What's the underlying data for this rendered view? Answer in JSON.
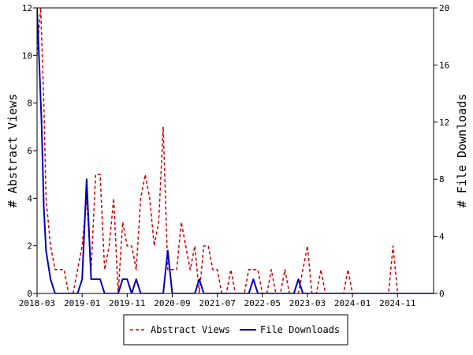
{
  "chart_data": {
    "type": "line",
    "xlabel": "",
    "x_tick_labels": [
      "2018-03",
      "2019-01",
      "2019-11",
      "2020-09",
      "2021-07",
      "2022-05",
      "2023-03",
      "2024-01",
      "2024-11"
    ],
    "x_tick_months": [
      0,
      10,
      20,
      30,
      40,
      50,
      60,
      70,
      80
    ],
    "x_range_months": [
      0,
      88
    ],
    "y_left": {
      "label": "# Abstract Views",
      "range": [
        0,
        12
      ],
      "ticks": [
        0,
        2,
        4,
        6,
        8,
        10,
        12
      ]
    },
    "y_right": {
      "label": "# File Downloads",
      "range": [
        0,
        20
      ],
      "ticks": [
        0,
        4,
        8,
        12,
        16,
        20
      ]
    },
    "grid": false,
    "legend_position": "bottom-center",
    "series": [
      {
        "name": "Abstract Views",
        "axis": "left",
        "color": "#cc0000",
        "style": "dashed",
        "x": [
          0,
          0.8,
          1.5,
          2,
          3,
          4,
          5,
          6,
          7,
          8,
          9,
          10,
          11,
          12,
          13,
          14,
          15,
          16,
          17,
          18,
          19,
          20,
          21,
          22,
          23,
          24,
          25,
          26,
          27,
          28,
          29,
          30,
          31,
          32,
          33,
          34,
          35,
          36,
          37,
          38,
          39,
          40,
          41,
          42,
          43,
          44,
          45,
          46,
          47,
          48,
          49,
          50,
          51,
          52,
          53,
          54,
          55,
          56,
          57,
          58,
          59,
          60,
          61,
          62,
          63,
          64,
          65,
          66,
          67,
          68,
          69,
          70,
          71,
          72,
          73,
          74,
          75,
          76,
          77,
          78,
          79,
          80,
          81,
          82,
          83,
          84,
          85,
          86,
          87,
          88
        ],
        "y": [
          10,
          12,
          8,
          4,
          2,
          1,
          1,
          1,
          0,
          0,
          1,
          2,
          4,
          1,
          5,
          5,
          1,
          2,
          4,
          0,
          3,
          2,
          2,
          1,
          4,
          5,
          4,
          2,
          3,
          7,
          1,
          1,
          1,
          3,
          2,
          1,
          2,
          0,
          2,
          2,
          1,
          1,
          0,
          0,
          1,
          0,
          0,
          0,
          1,
          1,
          1,
          0,
          0,
          1,
          0,
          0,
          1,
          0,
          0,
          0,
          1,
          2,
          0,
          0,
          1,
          0,
          0,
          0,
          0,
          0,
          1,
          0,
          0,
          0,
          0,
          0,
          0,
          0,
          0,
          0,
          2,
          0,
          0,
          0,
          0,
          0,
          0,
          0,
          0,
          0
        ]
      },
      {
        "name": "File Downloads",
        "axis": "right",
        "color": "#0000bb",
        "style": "solid",
        "x": [
          0,
          0.5,
          1,
          1.5,
          2,
          3,
          4,
          5,
          6,
          7,
          8,
          9,
          10,
          11,
          12,
          13,
          14,
          15,
          16,
          17,
          18,
          19,
          20,
          21,
          22,
          23,
          24,
          25,
          26,
          27,
          28,
          29,
          30,
          31,
          32,
          33,
          34,
          35,
          36,
          37,
          38,
          39,
          40,
          41,
          42,
          43,
          44,
          45,
          46,
          47,
          48,
          49,
          50,
          51,
          52,
          53,
          54,
          55,
          56,
          57,
          58,
          59,
          60,
          61,
          62,
          63,
          64,
          65,
          66,
          67,
          68,
          69,
          70,
          71,
          72,
          73,
          74,
          75,
          76,
          77,
          78,
          79,
          80,
          81,
          82,
          83,
          84,
          85,
          86,
          87,
          88
        ],
        "y": [
          20,
          16,
          12,
          6,
          3,
          1,
          0,
          0,
          0,
          0,
          0,
          0,
          1,
          8,
          1,
          1,
          1,
          0,
          0,
          0,
          0,
          1,
          1,
          0,
          1,
          0,
          0,
          0,
          0,
          0,
          0,
          3,
          0,
          0,
          0,
          0,
          0,
          0,
          1,
          0,
          0,
          0,
          0,
          0,
          0,
          0,
          0,
          0,
          0,
          0,
          1,
          0,
          0,
          0,
          0,
          0,
          0,
          0,
          0,
          0,
          1,
          0,
          0,
          0,
          0,
          0,
          0,
          0,
          0,
          0,
          0,
          0,
          0,
          0,
          0,
          0,
          0,
          0,
          0,
          0,
          0,
          0,
          0,
          0,
          0,
          0,
          0,
          0,
          0,
          0,
          0
        ]
      }
    ],
    "legend": [
      {
        "label": "Abstract Views",
        "color": "#cc0000",
        "style": "dashed"
      },
      {
        "label": "File Downloads",
        "color": "#0000bb",
        "style": "solid"
      }
    ]
  }
}
